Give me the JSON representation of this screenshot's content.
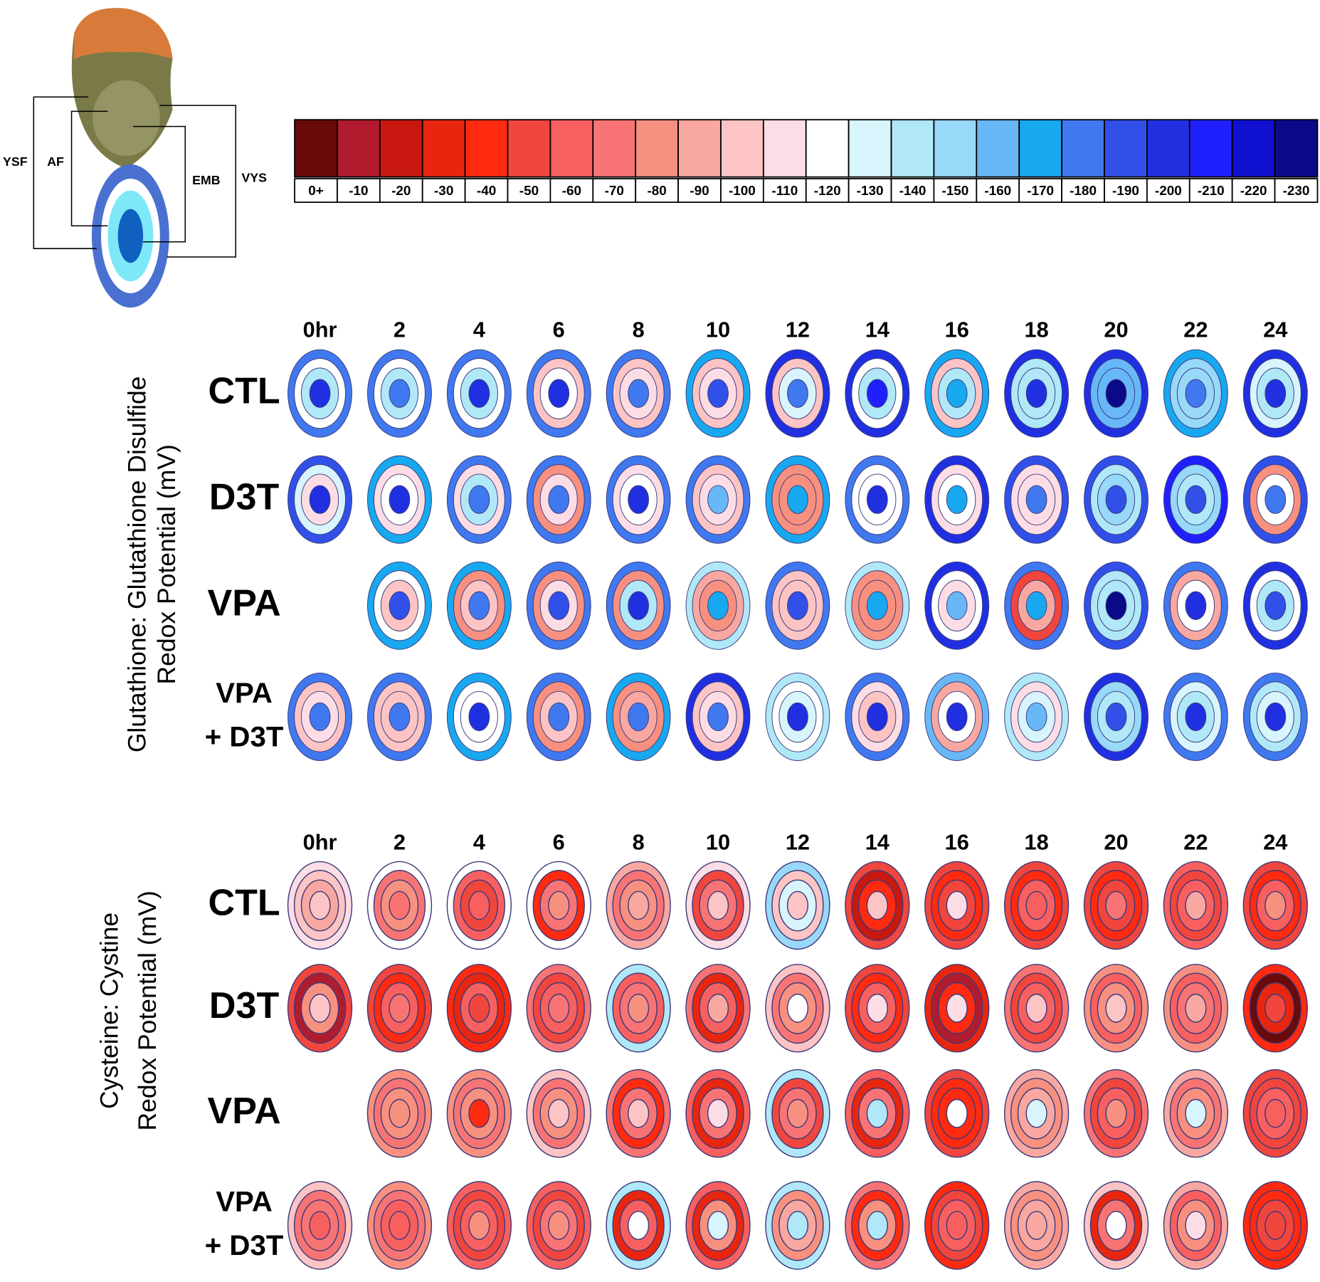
{
  "chart_data": {
    "type": "ring-map",
    "diagram_labels": [
      "YSF",
      "AF",
      "EMB",
      "VYS"
    ],
    "scale": {
      "ticks": [
        {
          "value": 0,
          "label": "0+"
        },
        -10,
        -20,
        -30,
        -40,
        -50,
        -60,
        -70,
        -80,
        -90,
        -100,
        -110,
        -120,
        -130,
        -140,
        -150,
        -160,
        -170,
        -180,
        -190,
        -200,
        -210,
        -220,
        -230
      ],
      "colors": [
        "#6b0a0a",
        "#b01c2e",
        "#c8180f",
        "#e8260f",
        "#ff2a10",
        "#f0463e",
        "#f86060",
        "#f87474",
        "#f89080",
        "#f8a8a0",
        "#fcc4c4",
        "#fddde5",
        "#ffffff",
        "#d8f4fc",
        "#b0e8f8",
        "#98d8f8",
        "#68b8f8",
        "#18a8f0",
        "#4078f0",
        "#3050e8",
        "#2030e0",
        "#2020ff",
        "#1010d0",
        "#0a0a88"
      ]
    },
    "panels": [
      {
        "ylabel": [
          "Glutathione: Glutathione Disulfide",
          "Redox Potential (mV)"
        ],
        "columns": [
          "0hr",
          "2",
          "4",
          "6",
          "8",
          "10",
          "12",
          "14",
          "16",
          "18",
          "20",
          "22",
          "24"
        ],
        "rows": [
          {
            "label": [
              "CTL"
            ],
            "cells": [
              [
                -180,
                -120,
                -140,
                -200
              ],
              [
                -180,
                -120,
                -140,
                -180
              ],
              [
                -180,
                -120,
                -140,
                -200
              ],
              [
                -180,
                -100,
                -120,
                -200
              ],
              [
                -180,
                -100,
                -110,
                -180
              ],
              [
                -170,
                -100,
                -110,
                -190
              ],
              [
                -200,
                -100,
                -130,
                -180
              ],
              [
                -200,
                -120,
                -140,
                -210
              ],
              [
                -170,
                -100,
                -140,
                -170
              ],
              [
                -200,
                -140,
                -140,
                -200
              ],
              [
                -200,
                -160,
                -160,
                -230
              ],
              [
                -170,
                -150,
                -150,
                -180
              ],
              [
                -200,
                -130,
                -140,
                -200
              ]
            ]
          },
          {
            "label": [
              "D3T"
            ],
            "cells": [
              [
                -190,
                -130,
                -110,
                -200
              ],
              [
                -170,
                -110,
                -120,
                -200
              ],
              [
                -180,
                -110,
                -140,
                -180
              ],
              [
                -180,
                -80,
                -110,
                -180
              ],
              [
                -180,
                -110,
                -120,
                -200
              ],
              [
                -180,
                -100,
                -110,
                -160
              ],
              [
                -170,
                -80,
                -80,
                -170
              ],
              [
                -180,
                -120,
                -120,
                -200
              ],
              [
                -200,
                -110,
                -120,
                -170
              ],
              [
                -190,
                -110,
                -110,
                -180
              ],
              [
                -190,
                -140,
                -150,
                -190
              ],
              [
                -210,
                -150,
                -140,
                -190
              ],
              [
                -190,
                -80,
                -120,
                -180
              ]
            ]
          },
          {
            "label": [
              "VPA"
            ],
            "cells": [
              null,
              [
                -170,
                -120,
                -100,
                -190
              ],
              [
                -170,
                -80,
                -100,
                -180
              ],
              [
                -180,
                -80,
                -110,
                -190
              ],
              [
                -180,
                -80,
                -140,
                -200
              ],
              [
                -140,
                -90,
                -80,
                -170
              ],
              [
                -180,
                -100,
                -100,
                -190
              ],
              [
                -140,
                -80,
                -80,
                -170
              ],
              [
                -200,
                -120,
                -110,
                -160
              ],
              [
                -180,
                -50,
                -90,
                -170
              ],
              [
                -190,
                -140,
                -140,
                -230
              ],
              [
                -180,
                -90,
                -120,
                -200
              ],
              [
                -200,
                -120,
                -140,
                -190
              ]
            ]
          },
          {
            "label": [
              "VPA",
              "+ D3T"
            ],
            "cells": [
              [
                -180,
                -100,
                -110,
                -180
              ],
              [
                -180,
                -100,
                -100,
                -180
              ],
              [
                -170,
                -120,
                -120,
                -200
              ],
              [
                -180,
                -80,
                -100,
                -180
              ],
              [
                -170,
                -80,
                -90,
                -180
              ],
              [
                -200,
                -100,
                -110,
                -180
              ],
              [
                -140,
                -120,
                -130,
                -200
              ],
              [
                -180,
                -110,
                -100,
                -200
              ],
              [
                -160,
                -90,
                -120,
                -200
              ],
              [
                -140,
                -110,
                -130,
                -160
              ],
              [
                -200,
                -150,
                -140,
                -190
              ],
              [
                -180,
                -130,
                -140,
                -200
              ],
              [
                -180,
                -140,
                -130,
                -200
              ]
            ]
          }
        ]
      },
      {
        "ylabel": [
          "Cysteine: Cystine",
          "Redox Potential (mV)"
        ],
        "columns": [
          "0hr",
          "2",
          "4",
          "6",
          "8",
          "10",
          "12",
          "14",
          "16",
          "18",
          "20",
          "22",
          "24"
        ],
        "rows": [
          {
            "label": [
              "CTL"
            ],
            "cells": [
              [
                -110,
                -100,
                -90,
                -100
              ],
              [
                -120,
                -70,
                -80,
                -70
              ],
              [
                -120,
                -60,
                -50,
                -60
              ],
              [
                -120,
                -40,
                -70,
                -80
              ],
              [
                -90,
                -70,
                -80,
                -90
              ],
              [
                -110,
                -50,
                -70,
                -100
              ],
              [
                -150,
                -100,
                -130,
                -100
              ],
              [
                -50,
                -20,
                -40,
                -100
              ],
              [
                -50,
                -40,
                -50,
                -110
              ],
              [
                -50,
                -40,
                -60,
                -60
              ],
              [
                -50,
                -40,
                -50,
                -70
              ],
              [
                -60,
                -50,
                -60,
                -90
              ],
              [
                -50,
                -40,
                -60,
                -80
              ]
            ]
          },
          {
            "label": [
              "D3T"
            ],
            "cells": [
              [
                -50,
                -10,
                -80,
                -100
              ],
              [
                -50,
                -40,
                -60,
                -70
              ],
              [
                -40,
                -30,
                -60,
                -50
              ],
              [
                -70,
                -50,
                -60,
                -70
              ],
              [
                -140,
                -60,
                -70,
                -80
              ],
              [
                -70,
                -30,
                -60,
                -90
              ],
              [
                -100,
                -70,
                -80,
                -120
              ],
              [
                -50,
                -40,
                -60,
                -110
              ],
              [
                -30,
                -10,
                -40,
                -110
              ],
              [
                -70,
                -50,
                -60,
                -100
              ],
              [
                -80,
                -60,
                -80,
                -100
              ],
              [
                -80,
                -60,
                -70,
                -90
              ],
              [
                -40,
                0,
                -30,
                -50
              ]
            ]
          },
          {
            "label": [
              "VPA"
            ],
            "cells": [
              null,
              [
                -80,
                -70,
                -80,
                -80
              ],
              [
                -80,
                -70,
                -80,
                -40
              ],
              [
                -100,
                -70,
                -80,
                -100
              ],
              [
                -70,
                -40,
                -70,
                -100
              ],
              [
                -60,
                -30,
                -70,
                -110
              ],
              [
                -140,
                -50,
                -70,
                -80
              ],
              [
                -60,
                -30,
                -70,
                -140
              ],
              [
                -50,
                -40,
                -40,
                -120
              ],
              [
                -90,
                -80,
                -90,
                -130
              ],
              [
                -70,
                -50,
                -60,
                -80
              ],
              [
                -90,
                -70,
                -80,
                -130
              ],
              [
                -50,
                -50,
                -60,
                -60
              ]
            ]
          },
          {
            "label": [
              "VPA",
              "+ D3T"
            ],
            "cells": [
              [
                -100,
                -70,
                -70,
                -60
              ],
              [
                -80,
                -70,
                -60,
                -60
              ],
              [
                -60,
                -50,
                -60,
                -80
              ],
              [
                -60,
                -50,
                -70,
                -80
              ],
              [
                -140,
                -30,
                -60,
                -120
              ],
              [
                -60,
                -30,
                -80,
                -130
              ],
              [
                -140,
                -80,
                -90,
                -140
              ],
              [
                -70,
                -40,
                -80,
                -140
              ],
              [
                -40,
                -50,
                -60,
                -60
              ],
              [
                -90,
                -80,
                -90,
                -90
              ],
              [
                -100,
                -30,
                -70,
                -120
              ],
              [
                -90,
                -60,
                -80,
                -110
              ],
              [
                -40,
                -40,
                -50,
                -50
              ]
            ]
          }
        ]
      }
    ]
  }
}
